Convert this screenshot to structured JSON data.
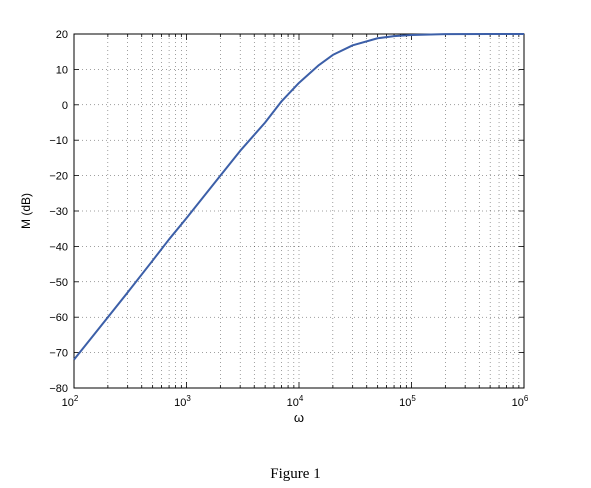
{
  "caption": "Figure 1",
  "chart_data": {
    "type": "line",
    "xlabel": "ω",
    "ylabel": "M (dB)",
    "xscale": "log",
    "xlim": [
      100,
      1000000
    ],
    "ylim": [
      -80,
      20
    ],
    "grid": true,
    "x_ticks": [
      100,
      1000,
      10000,
      100000,
      1000000
    ],
    "x_tick_labels": [
      {
        "base": "10",
        "exp": "2"
      },
      {
        "base": "10",
        "exp": "3"
      },
      {
        "base": "10",
        "exp": "4"
      },
      {
        "base": "10",
        "exp": "5"
      },
      {
        "base": "10",
        "exp": "6"
      }
    ],
    "y_ticks": [
      20,
      10,
      0,
      -10,
      -20,
      -30,
      -40,
      -50,
      -60,
      -70,
      -80
    ],
    "y_tick_labels": [
      "20",
      "10",
      "0",
      "−10",
      "−20",
      "−30",
      "−40",
      "−50",
      "−60",
      "−70",
      "−80"
    ],
    "series": [
      {
        "color": "#3c5fa8",
        "x": [
          100,
          150,
          200,
          300,
          500,
          700,
          1000,
          1500,
          2000,
          3000,
          5000,
          7000,
          10000,
          15000,
          20000,
          30000,
          50000,
          70000,
          100000,
          200000,
          500000,
          1000000
        ],
        "y": [
          -72,
          -65,
          -60,
          -53,
          -44,
          -38,
          -32,
          -25,
          -20,
          -13,
          -5,
          1,
          6.2,
          11.2,
          14.1,
          16.8,
          18.8,
          19.4,
          19.7,
          19.95,
          20,
          20
        ]
      }
    ]
  }
}
